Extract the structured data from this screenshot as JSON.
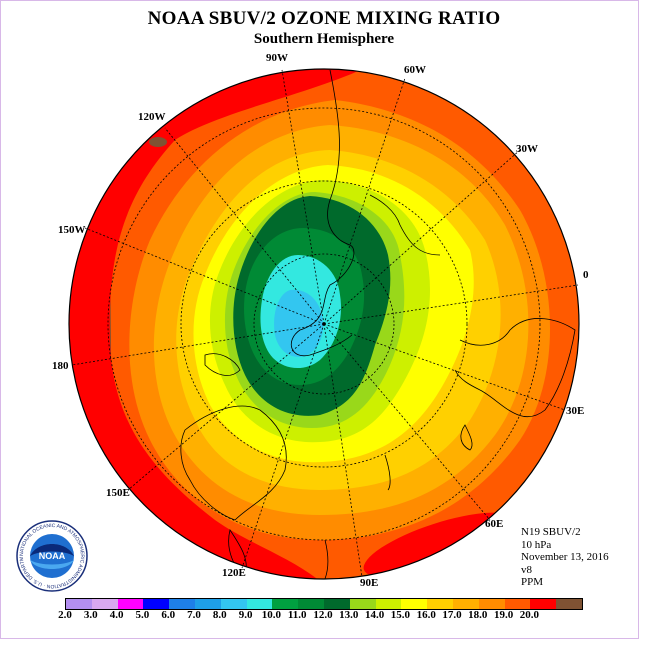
{
  "title": "NOAA SBUV/2 OZONE MIXING RATIO",
  "subtitle": "Southern Hemisphere",
  "longitude_labels": {
    "l90w": "90W",
    "l60w": "60W",
    "l30w": "30W",
    "l0": "0",
    "l30e": "30E",
    "l60e": "60E",
    "l90e": "90E",
    "l120e": "120E",
    "l150e": "150E",
    "l180": "180",
    "l150w": "150W",
    "l120w": "120W"
  },
  "info": {
    "satellite": "N19 SBUV/2",
    "level": "10 hPa",
    "date": "November 13, 2016",
    "version": "v8",
    "units": "PPM"
  },
  "logo": {
    "text": "NOAA",
    "ring_text": "NATIONAL OCEANIC AND ATMOSPHERIC ADMINISTRATION · U.S. DEPARTMENT OF COMMERCE"
  },
  "colorbar": {
    "colors": [
      "#b38ff0",
      "#d9a8f0",
      "#ff00ff",
      "#0000ff",
      "#1e7fe8",
      "#1e9fe8",
      "#33c6f0",
      "#33e8e0",
      "#00a040",
      "#008a35",
      "#006a2c",
      "#99d81a",
      "#cdf000",
      "#ffff00",
      "#ffd000",
      "#ffb000",
      "#ff8c00",
      "#ff5a00",
      "#ff0000",
      "#7f5233"
    ],
    "tick_labels": [
      "2.0",
      "3.0",
      "4.0",
      "5.0",
      "6.0",
      "7.0",
      "8.0",
      "9.0",
      "10.0",
      "11.0",
      "12.0",
      "13.0",
      "14.0",
      "15.0",
      "16.0",
      "17.0",
      "18.0",
      "19.0",
      "20.0"
    ]
  },
  "map_data": {
    "projection": "south-polar-stereographic",
    "field": "ozone mixing ratio",
    "contour_levels": [
      20,
      19,
      18,
      17,
      16,
      15,
      14,
      13,
      12,
      11,
      10,
      9,
      8
    ],
    "ozone_min_region": "near South Pole (9-10 PPM)",
    "ozone_max_region": "outer edge toward 150W-180 (19-20 PPM)"
  }
}
